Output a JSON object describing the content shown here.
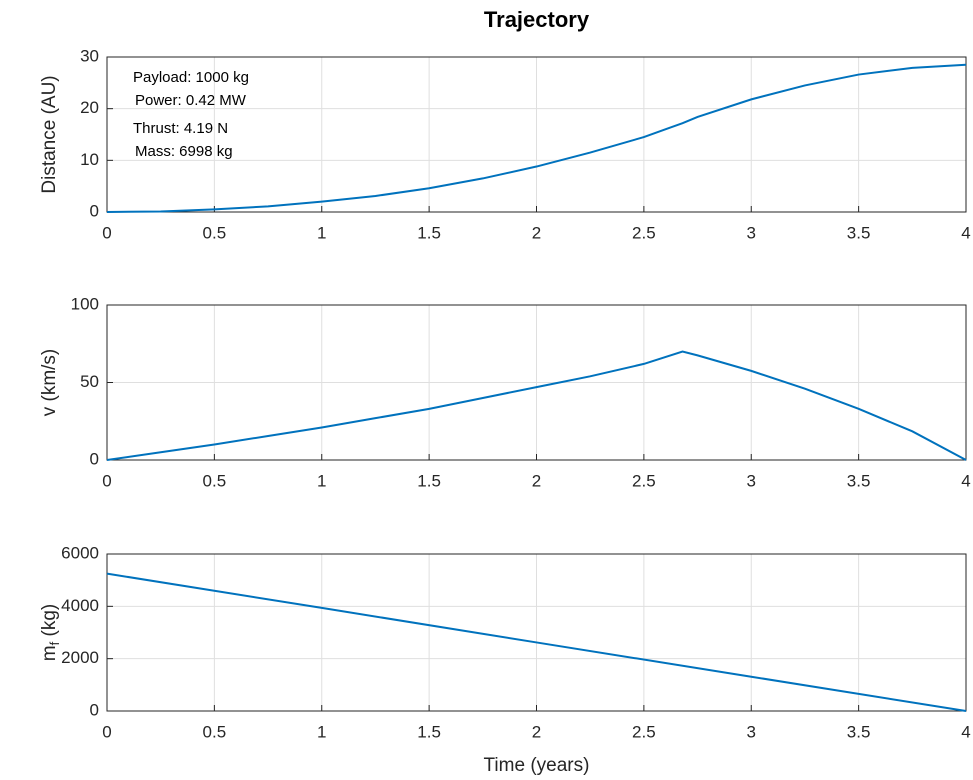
{
  "chart_data": [
    {
      "type": "line",
      "title": "Trajectory",
      "ylabel": [
        {
          "text": "Distance (AU)"
        }
      ],
      "annotations": [
        "Payload: 1000 kg",
        "Power: 0.42 MW",
        "Thrust: 4.19 N",
        "Mass: 6998 kg"
      ],
      "x": [
        0,
        0.25,
        0.5,
        0.75,
        1,
        1.25,
        1.5,
        1.75,
        2,
        2.25,
        2.5,
        2.68,
        2.75,
        3,
        3.25,
        3.5,
        3.75,
        4
      ],
      "values": [
        0,
        0.1,
        0.5,
        1.1,
        2.0,
        3.1,
        4.6,
        6.5,
        8.8,
        11.5,
        14.5,
        17.2,
        18.4,
        21.8,
        24.5,
        26.6,
        27.9,
        28.5
      ],
      "color": "#0072bd",
      "xlim": [
        0,
        4
      ],
      "xticks": [
        0,
        0.5,
        1,
        1.5,
        2,
        2.5,
        3,
        3.5,
        4
      ],
      "ylim": [
        0,
        30
      ],
      "yticks": [
        0,
        10,
        20,
        30
      ],
      "grid": true
    },
    {
      "type": "line",
      "ylabel": [
        {
          "text": "v (km/s)"
        }
      ],
      "x": [
        0,
        0.25,
        0.5,
        0.75,
        1,
        1.25,
        1.5,
        1.75,
        2,
        2.25,
        2.5,
        2.68,
        2.75,
        3,
        3.25,
        3.5,
        3.75,
        4
      ],
      "values": [
        0,
        5,
        10,
        15.5,
        21,
        27,
        33,
        40,
        47,
        54,
        62,
        70,
        67.5,
        57.5,
        46,
        33,
        18.5,
        0
      ],
      "color": "#0072bd",
      "xlim": [
        0,
        4
      ],
      "xticks": [
        0,
        0.5,
        1,
        1.5,
        2,
        2.5,
        3,
        3.5,
        4
      ],
      "ylim": [
        0,
        100
      ],
      "yticks": [
        0,
        50,
        100
      ],
      "grid": true
    },
    {
      "type": "line",
      "ylabel": [
        {
          "text": "m"
        },
        {
          "text": "f",
          "sub": true
        },
        {
          "text": " (kg)"
        }
      ],
      "xlabel": "Time (years)",
      "x": [
        0,
        1,
        2,
        3,
        4
      ],
      "values": [
        5250,
        3940,
        2620,
        1310,
        0
      ],
      "color": "#0072bd",
      "xlim": [
        0,
        4
      ],
      "xticks": [
        0,
        0.5,
        1,
        1.5,
        2,
        2.5,
        3,
        3.5,
        4
      ],
      "ylim": [
        0,
        6000
      ],
      "yticks": [
        0,
        2000,
        4000,
        6000
      ],
      "grid": true
    }
  ]
}
